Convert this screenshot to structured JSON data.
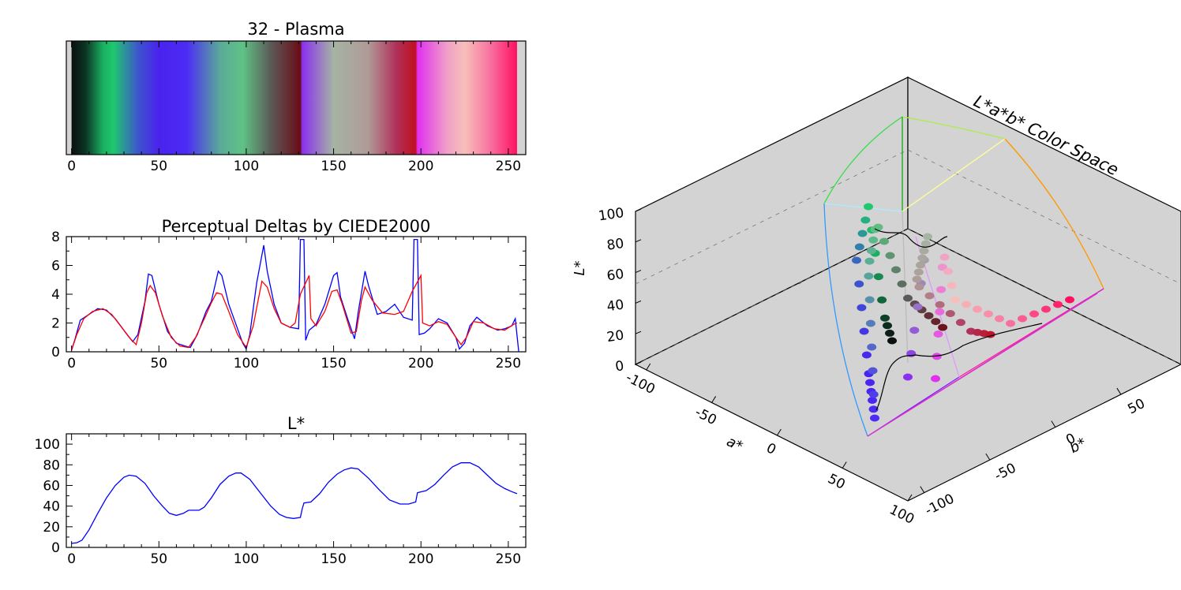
{
  "chart_data": [
    {
      "type": "colorbar",
      "title": "32 - Plasma",
      "xlim": [
        -3,
        260
      ],
      "xticks": [
        "0",
        "50",
        "100",
        "150",
        "200",
        "250"
      ],
      "tick_values": [
        0,
        50,
        100,
        150,
        200,
        250
      ],
      "gradient_stops": [
        {
          "index": 0,
          "color": "#0a1010"
        },
        {
          "index": 8,
          "color": "#0c3424"
        },
        {
          "index": 18,
          "color": "#1ab061"
        },
        {
          "index": 24,
          "color": "#1fc86e"
        },
        {
          "index": 38,
          "color": "#3d56cc"
        },
        {
          "index": 50,
          "color": "#4a22ee"
        },
        {
          "index": 66,
          "color": "#4c2cf5"
        },
        {
          "index": 85,
          "color": "#5aaa98"
        },
        {
          "index": 98,
          "color": "#5fc285"
        },
        {
          "index": 114,
          "color": "#5c5a58"
        },
        {
          "index": 131,
          "color": "#6a0c16"
        },
        {
          "index": 132,
          "color": "#8a30f0"
        },
        {
          "index": 150,
          "color": "#a5b4a3"
        },
        {
          "index": 170,
          "color": "#b09a98"
        },
        {
          "index": 186,
          "color": "#b0305a"
        },
        {
          "index": 197,
          "color": "#c01020"
        },
        {
          "index": 198,
          "color": "#e030f0"
        },
        {
          "index": 215,
          "color": "#f0a0c8"
        },
        {
          "index": 225,
          "color": "#f7bfb9"
        },
        {
          "index": 240,
          "color": "#f870a0"
        },
        {
          "index": 255,
          "color": "#ff1060"
        }
      ]
    },
    {
      "type": "line",
      "title": "Perceptual Deltas by CIEDE2000",
      "xlim": [
        -3,
        260
      ],
      "ylim": [
        0,
        8
      ],
      "xticks": [
        "0",
        "50",
        "100",
        "150",
        "200",
        "250"
      ],
      "tick_values": [
        0,
        50,
        100,
        150,
        200,
        250
      ],
      "yticks": [
        "0",
        "2",
        "4",
        "6",
        "8"
      ],
      "ytick_values": [
        0,
        2,
        4,
        6,
        8
      ],
      "series": [
        {
          "name": "blue",
          "color": "#0000ff",
          "points": [
            [
              0,
              0.1
            ],
            [
              2,
              0.9
            ],
            [
              5,
              2.2
            ],
            [
              10,
              2.6
            ],
            [
              15,
              3.0
            ],
            [
              20,
              2.9
            ],
            [
              25,
              2.3
            ],
            [
              30,
              1.5
            ],
            [
              35,
              0.7
            ],
            [
              38,
              1.2
            ],
            [
              42,
              3.5
            ],
            [
              44,
              5.4
            ],
            [
              46,
              5.3
            ],
            [
              50,
              3.3
            ],
            [
              55,
              1.4
            ],
            [
              60,
              0.6
            ],
            [
              65,
              0.4
            ],
            [
              68,
              0.3
            ],
            [
              72,
              1.2
            ],
            [
              77,
              2.8
            ],
            [
              80,
              3.5
            ],
            [
              84,
              5.6
            ],
            [
              86,
              5.3
            ],
            [
              90,
              3.3
            ],
            [
              95,
              1.6
            ],
            [
              98,
              0.6
            ],
            [
              100,
              0.2
            ],
            [
              102,
              1.2
            ],
            [
              106,
              4.8
            ],
            [
              110,
              7.4
            ],
            [
              112,
              5.6
            ],
            [
              116,
              3.3
            ],
            [
              120,
              2.0
            ],
            [
              125,
              1.7
            ],
            [
              130,
              1.6
            ],
            [
              131,
              7.8
            ],
            [
              133,
              7.8
            ],
            [
              134,
              0.8
            ],
            [
              136,
              1.5
            ],
            [
              140,
              1.9
            ],
            [
              145,
              3.3
            ],
            [
              150,
              5.3
            ],
            [
              152,
              5.5
            ],
            [
              154,
              3.8
            ],
            [
              158,
              2.3
            ],
            [
              162,
              0.9
            ],
            [
              164,
              2.7
            ],
            [
              168,
              5.6
            ],
            [
              170,
              4.6
            ],
            [
              175,
              2.6
            ],
            [
              180,
              2.8
            ],
            [
              185,
              3.3
            ],
            [
              190,
              2.4
            ],
            [
              195,
              2.2
            ],
            [
              196,
              7.8
            ],
            [
              198,
              7.8
            ],
            [
              199,
              1.2
            ],
            [
              202,
              1.3
            ],
            [
              205,
              1.6
            ],
            [
              210,
              2.3
            ],
            [
              215,
              2.0
            ],
            [
              220,
              1.0
            ],
            [
              222,
              0.2
            ],
            [
              225,
              0.6
            ],
            [
              228,
              1.8
            ],
            [
              232,
              2.4
            ],
            [
              238,
              1.8
            ],
            [
              244,
              1.5
            ],
            [
              248,
              1.6
            ],
            [
              252,
              1.8
            ],
            [
              254,
              2.3
            ],
            [
              256,
              0.0
            ]
          ]
        },
        {
          "name": "red",
          "color": "#ff0000",
          "points": [
            [
              0,
              0.1
            ],
            [
              3,
              1.2
            ],
            [
              7,
              2.3
            ],
            [
              12,
              2.8
            ],
            [
              18,
              3.0
            ],
            [
              23,
              2.6
            ],
            [
              28,
              1.8
            ],
            [
              33,
              1.0
            ],
            [
              37,
              0.5
            ],
            [
              40,
              2.0
            ],
            [
              43,
              4.1
            ],
            [
              45,
              4.6
            ],
            [
              48,
              4.1
            ],
            [
              52,
              2.5
            ],
            [
              57,
              1.0
            ],
            [
              62,
              0.4
            ],
            [
              67,
              0.3
            ],
            [
              71,
              1.0
            ],
            [
              76,
              2.3
            ],
            [
              80,
              3.4
            ],
            [
              83,
              4.1
            ],
            [
              86,
              4.0
            ],
            [
              90,
              2.8
            ],
            [
              95,
              1.2
            ],
            [
              100,
              0.3
            ],
            [
              104,
              1.8
            ],
            [
              107,
              3.7
            ],
            [
              109,
              4.9
            ],
            [
              112,
              4.5
            ],
            [
              116,
              3.0
            ],
            [
              120,
              2.0
            ],
            [
              125,
              1.7
            ],
            [
              128,
              2.0
            ],
            [
              131,
              4.0
            ],
            [
              136,
              5.3
            ],
            [
              137,
              2.3
            ],
            [
              140,
              1.8
            ],
            [
              145,
              2.8
            ],
            [
              149,
              4.2
            ],
            [
              152,
              4.3
            ],
            [
              155,
              3.3
            ],
            [
              160,
              1.3
            ],
            [
              163,
              1.4
            ],
            [
              166,
              3.6
            ],
            [
              168,
              4.5
            ],
            [
              172,
              3.6
            ],
            [
              178,
              2.7
            ],
            [
              185,
              2.6
            ],
            [
              190,
              2.8
            ],
            [
              195,
              4.2
            ],
            [
              200,
              5.3
            ],
            [
              201,
              2.0
            ],
            [
              205,
              1.8
            ],
            [
              210,
              2.1
            ],
            [
              215,
              1.9
            ],
            [
              220,
              1.0
            ],
            [
              223,
              0.5
            ],
            [
              226,
              1.0
            ],
            [
              230,
              2.1
            ],
            [
              236,
              2.0
            ],
            [
              242,
              1.6
            ],
            [
              248,
              1.5
            ],
            [
              253,
              1.9
            ],
            [
              255,
              2.0
            ]
          ]
        }
      ]
    },
    {
      "type": "line",
      "title": "L*",
      "xlim": [
        -3,
        260
      ],
      "ylim": [
        0,
        110
      ],
      "xticks": [
        "0",
        "50",
        "100",
        "150",
        "200",
        "250"
      ],
      "tick_values": [
        0,
        50,
        100,
        150,
        200,
        250
      ],
      "yticks": [
        "0",
        "20",
        "40",
        "60",
        "80",
        "100"
      ],
      "ytick_values": [
        0,
        20,
        40,
        60,
        80,
        100
      ],
      "series": [
        {
          "name": "L*",
          "color": "#0000ff",
          "points": [
            [
              0,
              4
            ],
            [
              3,
              4.5
            ],
            [
              6,
              7
            ],
            [
              10,
              17
            ],
            [
              15,
              33
            ],
            [
              20,
              48
            ],
            [
              25,
              60
            ],
            [
              30,
              68
            ],
            [
              33,
              70
            ],
            [
              37,
              69
            ],
            [
              42,
              62
            ],
            [
              47,
              50
            ],
            [
              52,
              40
            ],
            [
              56,
              33
            ],
            [
              60,
              31
            ],
            [
              64,
              33
            ],
            [
              67,
              36
            ],
            [
              70,
              36
            ],
            [
              73,
              36
            ],
            [
              76,
              39
            ],
            [
              80,
              48
            ],
            [
              85,
              61
            ],
            [
              90,
              69
            ],
            [
              94,
              72
            ],
            [
              97,
              72
            ],
            [
              102,
              66
            ],
            [
              108,
              53
            ],
            [
              114,
              40
            ],
            [
              119,
              32
            ],
            [
              123,
              29
            ],
            [
              127,
              28
            ],
            [
              131,
              29
            ],
            [
              132,
              37
            ],
            [
              133,
              43
            ],
            [
              137,
              44
            ],
            [
              142,
              52
            ],
            [
              147,
              63
            ],
            [
              152,
              71
            ],
            [
              156,
              75
            ],
            [
              160,
              77
            ],
            [
              164,
              76
            ],
            [
              170,
              67
            ],
            [
              176,
              56
            ],
            [
              182,
              46
            ],
            [
              188,
              42
            ],
            [
              193,
              42
            ],
            [
              197,
              44
            ],
            [
              198,
              53
            ],
            [
              203,
              55
            ],
            [
              208,
              61
            ],
            [
              213,
              70
            ],
            [
              218,
              78
            ],
            [
              223,
              82
            ],
            [
              228,
              82
            ],
            [
              233,
              78
            ],
            [
              238,
              70
            ],
            [
              243,
              62
            ],
            [
              248,
              57
            ],
            [
              252,
              54
            ],
            [
              255,
              52
            ]
          ]
        }
      ]
    },
    {
      "type": "scatter3d",
      "title": "L*a*b* Color Space",
      "zlabel": "L*",
      "xlabel": "a*",
      "ylabel": "b*",
      "zticks": [
        "0",
        "20",
        "40",
        "60",
        "80",
        "100"
      ],
      "xticks": [
        "-100",
        "-50",
        "0",
        "50",
        "100"
      ],
      "yticks": [
        "-100",
        "-50",
        "0",
        "50"
      ]
    }
  ]
}
